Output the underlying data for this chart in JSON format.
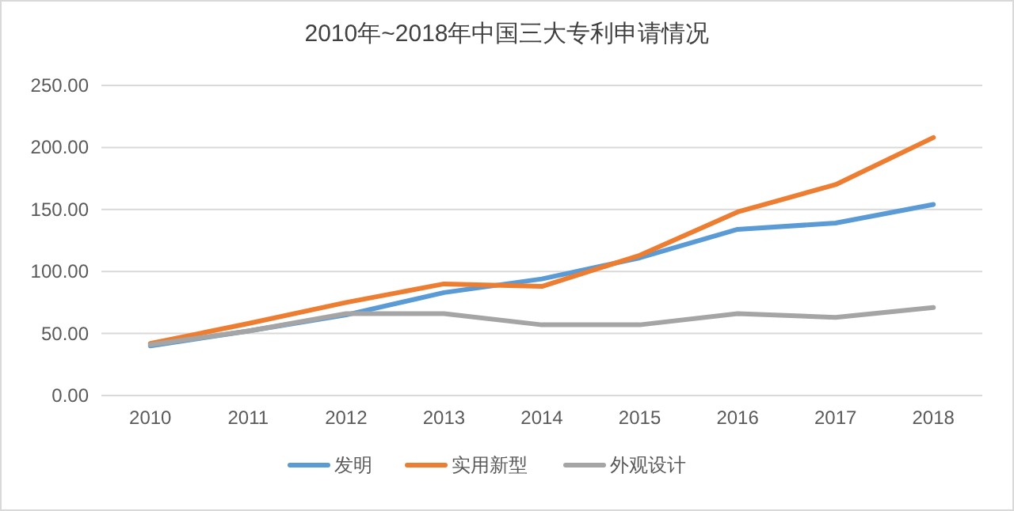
{
  "chart_data": {
    "type": "line",
    "title": "2010年~2018年中国三大专利申请情况",
    "categories": [
      "2010",
      "2011",
      "2012",
      "2013",
      "2014",
      "2015",
      "2016",
      "2017",
      "2018"
    ],
    "series": [
      {
        "name": "发明",
        "color": "#5b9bd5",
        "values": [
          40,
          52,
          65,
          83,
          94,
          111,
          134,
          139,
          154
        ]
      },
      {
        "name": "实用新型",
        "color": "#ed7d31",
        "values": [
          42,
          58,
          75,
          90,
          88,
          113,
          148,
          170,
          208
        ]
      },
      {
        "name": "外观设计",
        "color": "#a5a5a5",
        "values": [
          41,
          52,
          66,
          66,
          57,
          57,
          66,
          63,
          71
        ]
      }
    ],
    "ylim": [
      0,
      250
    ],
    "yticks": [
      {
        "value": 0,
        "label": "0.00"
      },
      {
        "value": 50,
        "label": "50.00"
      },
      {
        "value": 100,
        "label": "100.00"
      },
      {
        "value": 150,
        "label": "150.00"
      },
      {
        "value": 200,
        "label": "200.00"
      },
      {
        "value": 250,
        "label": "250.00"
      }
    ],
    "grid": "y",
    "legend": "bottom",
    "marker": "none",
    "line_style": "solid"
  }
}
